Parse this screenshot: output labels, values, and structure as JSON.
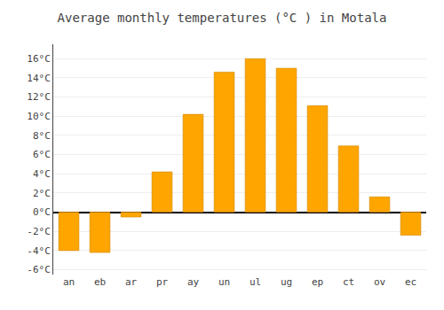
{
  "chart_data": {
    "type": "bar",
    "title": "Average monthly temperatures (°C ) in Motala",
    "categories": [
      "an",
      "eb",
      "ar",
      "pr",
      "ay",
      "un",
      "ul",
      "ug",
      "ep",
      "ct",
      "ov",
      "ec"
    ],
    "values": [
      -4.0,
      -4.2,
      -0.5,
      4.2,
      10.2,
      14.6,
      16.0,
      15.0,
      11.1,
      6.9,
      1.6,
      -2.4
    ],
    "color": "#FFA500",
    "ylim": [
      -6.5,
      17.5
    ],
    "yticks": [
      {
        "value": -6,
        "label": "-6°C"
      },
      {
        "value": -4,
        "label": "-4°C"
      },
      {
        "value": -2,
        "label": "-2°C"
      },
      {
        "value": 0,
        "label": "0°C"
      },
      {
        "value": 2,
        "label": "2°C"
      },
      {
        "value": 4,
        "label": "4°C"
      },
      {
        "value": 6,
        "label": "6°C"
      },
      {
        "value": 8,
        "label": "8°C"
      },
      {
        "value": 10,
        "label": "10°C"
      },
      {
        "value": 12,
        "label": "12°C"
      },
      {
        "value": 14,
        "label": "14°C"
      },
      {
        "value": 16,
        "label": "16°C"
      }
    ],
    "grid": true
  }
}
